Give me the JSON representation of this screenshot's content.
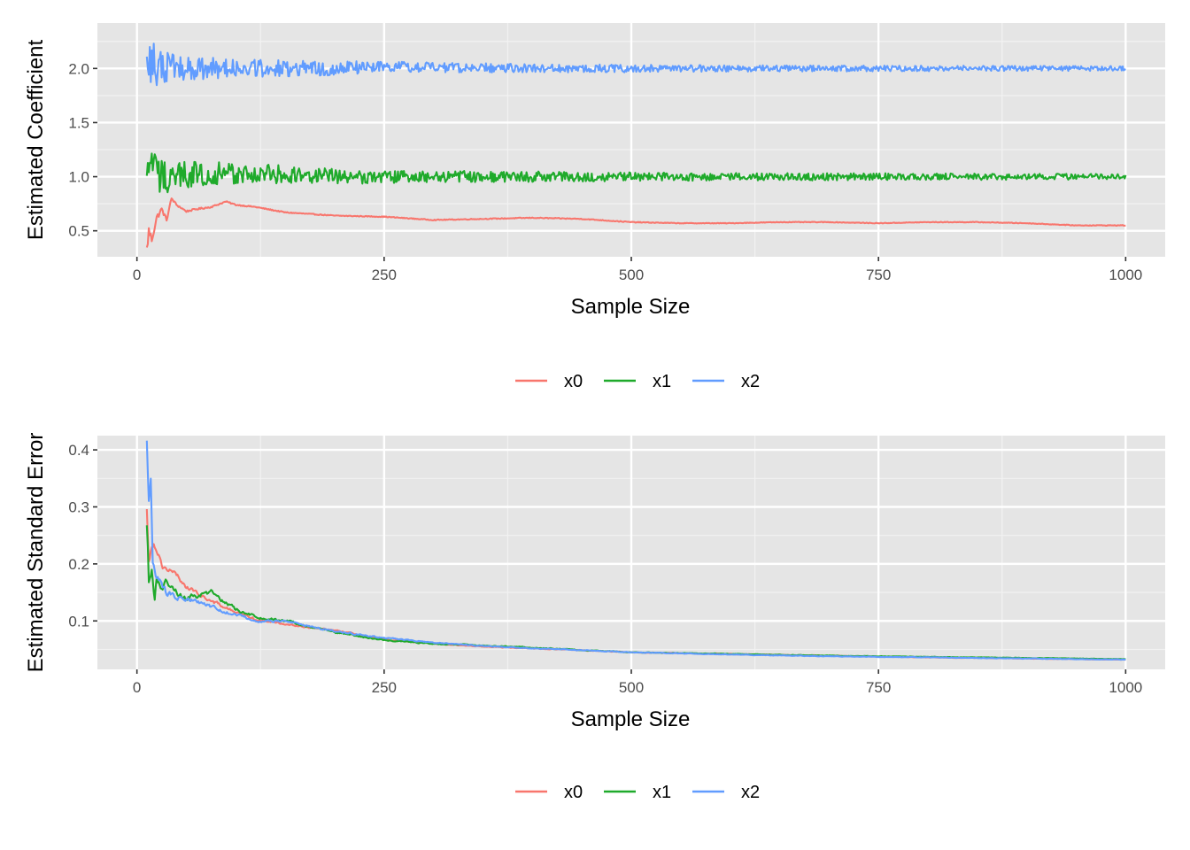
{
  "colors": {
    "panel_background": "#e5e5e5",
    "grid_major": "#ffffff",
    "grid_minor": "#f2f2f2",
    "tick_text": "#4d4d4d",
    "x0": "#F8766D",
    "x1": "#1FAA2B",
    "x2": "#619CFF"
  },
  "chart_data": [
    {
      "type": "line",
      "title": "",
      "xlabel": "Sample Size",
      "ylabel": "Estimated Coefficient",
      "xlim": [
        -40,
        1040
      ],
      "ylim": [
        0.26,
        2.42
      ],
      "x_ticks": [
        0,
        250,
        500,
        750,
        1000
      ],
      "x_tick_labels": [
        "0",
        "250",
        "500",
        "750",
        "1000"
      ],
      "y_ticks": [
        0.5,
        1.0,
        1.5,
        2.0
      ],
      "y_tick_labels": [
        "0.5",
        "1.0",
        "1.5",
        "2.0"
      ],
      "grid": true,
      "legend_position": "bottom",
      "legend": [
        "x0",
        "x1",
        "x2"
      ],
      "x_range": [
        10,
        1000
      ],
      "series": [
        {
          "name": "x0",
          "x": [
            10,
            12,
            15,
            20,
            25,
            30,
            35,
            40,
            50,
            60,
            75,
            90,
            100,
            120,
            150,
            200,
            250,
            300,
            350,
            400,
            450,
            500,
            550,
            600,
            650,
            700,
            750,
            800,
            850,
            900,
            950,
            1000
          ],
          "y": [
            0.32,
            0.5,
            0.42,
            0.62,
            0.7,
            0.6,
            0.8,
            0.74,
            0.68,
            0.7,
            0.72,
            0.77,
            0.74,
            0.72,
            0.67,
            0.64,
            0.63,
            0.6,
            0.61,
            0.62,
            0.61,
            0.58,
            0.57,
            0.57,
            0.58,
            0.58,
            0.57,
            0.58,
            0.58,
            0.57,
            0.55,
            0.55
          ],
          "noise": [
            0.06,
            0.05,
            0.04,
            0.03,
            0.02,
            0.015,
            0.012,
            0.01,
            0.008,
            0.008,
            0.007,
            0.006,
            0.006,
            0.005,
            0.005,
            0.004,
            0.004,
            0.004,
            0.004,
            0.004,
            0.004,
            0.004,
            0.003,
            0.003,
            0.003,
            0.003,
            0.003,
            0.003,
            0.003,
            0.003,
            0.003,
            0.003
          ]
        },
        {
          "name": "x1",
          "x": [
            10,
            15,
            20,
            30,
            50,
            75,
            100,
            150,
            200,
            250,
            300,
            400,
            500,
            600,
            700,
            800,
            900,
            1000
          ],
          "y": [
            0.9,
            1.2,
            1.0,
            1.0,
            1.02,
            1.03,
            1.02,
            1.02,
            1.0,
            1.0,
            1.0,
            1.0,
            1.0,
            1.0,
            1.0,
            1.0,
            1.0,
            1.0
          ],
          "noise": [
            0.25,
            0.22,
            0.18,
            0.15,
            0.13,
            0.12,
            0.1,
            0.09,
            0.07,
            0.06,
            0.055,
            0.05,
            0.04,
            0.035,
            0.035,
            0.03,
            0.03,
            0.025
          ]
        },
        {
          "name": "x2",
          "x": [
            10,
            15,
            20,
            30,
            50,
            75,
            100,
            150,
            200,
            250,
            300,
            400,
            500,
            600,
            700,
            800,
            900,
            1000
          ],
          "y": [
            2.0,
            2.05,
            2.0,
            2.02,
            2.0,
            2.0,
            2.0,
            2.0,
            2.0,
            2.02,
            2.01,
            2.0,
            2.0,
            2.0,
            2.0,
            2.0,
            2.0,
            2.0
          ],
          "noise": [
            0.25,
            0.22,
            0.17,
            0.14,
            0.11,
            0.1,
            0.085,
            0.075,
            0.065,
            0.05,
            0.045,
            0.04,
            0.035,
            0.03,
            0.028,
            0.026,
            0.024,
            0.022
          ]
        }
      ]
    },
    {
      "type": "line",
      "title": "",
      "xlabel": "Sample Size",
      "ylabel": "Estimated Standard Error",
      "xlim": [
        -40,
        1040
      ],
      "ylim": [
        0.015,
        0.425
      ],
      "x_ticks": [
        0,
        250,
        500,
        750,
        1000
      ],
      "x_tick_labels": [
        "0",
        "250",
        "500",
        "750",
        "1000"
      ],
      "y_ticks": [
        0.1,
        0.2,
        0.3,
        0.4
      ],
      "y_tick_labels": [
        "0.1",
        "0.2",
        "0.3",
        "0.4"
      ],
      "grid": true,
      "legend_position": "bottom",
      "legend": [
        "x0",
        "x1",
        "x2"
      ],
      "x_range": [
        10,
        1000
      ],
      "series": [
        {
          "name": "x0",
          "x": [
            10,
            12,
            15,
            20,
            25,
            30,
            40,
            50,
            75,
            100,
            125,
            150,
            175,
            200,
            250,
            300,
            350,
            400,
            500,
            600,
            700,
            800,
            900,
            1000
          ],
          "y": [
            0.29,
            0.21,
            0.24,
            0.23,
            0.2,
            0.19,
            0.18,
            0.16,
            0.135,
            0.115,
            0.1,
            0.095,
            0.088,
            0.083,
            0.068,
            0.06,
            0.055,
            0.052,
            0.045,
            0.042,
            0.039,
            0.036,
            0.034,
            0.032
          ],
          "noise": [
            0.02,
            0.015,
            0.012,
            0.01,
            0.009,
            0.008,
            0.006,
            0.005,
            0.004,
            0.003,
            0.003,
            0.002,
            0.002,
            0.002,
            0.0015,
            0.001,
            0.001,
            0.001,
            0.0008,
            0.0006,
            0.0006,
            0.0005,
            0.0005,
            0.0005
          ]
        },
        {
          "name": "x1",
          "x": [
            10,
            12,
            15,
            18,
            20,
            25,
            30,
            40,
            50,
            75,
            100,
            125,
            150,
            175,
            200,
            250,
            300,
            350,
            400,
            500,
            600,
            700,
            800,
            900,
            1000
          ],
          "y": [
            0.26,
            0.17,
            0.2,
            0.14,
            0.18,
            0.16,
            0.17,
            0.15,
            0.14,
            0.15,
            0.12,
            0.105,
            0.1,
            0.09,
            0.08,
            0.066,
            0.06,
            0.057,
            0.053,
            0.045,
            0.042,
            0.039,
            0.037,
            0.035,
            0.033
          ],
          "noise": [
            0.025,
            0.02,
            0.015,
            0.012,
            0.012,
            0.01,
            0.009,
            0.007,
            0.006,
            0.005,
            0.004,
            0.003,
            0.003,
            0.002,
            0.002,
            0.0015,
            0.001,
            0.001,
            0.001,
            0.0008,
            0.0006,
            0.0006,
            0.0005,
            0.0005,
            0.0005
          ]
        },
        {
          "name": "x2",
          "x": [
            10,
            12,
            14,
            16,
            20,
            25,
            30,
            40,
            50,
            75,
            100,
            125,
            150,
            175,
            200,
            250,
            300,
            350,
            400,
            500,
            600,
            700,
            800,
            900,
            1000
          ],
          "y": [
            0.41,
            0.3,
            0.34,
            0.2,
            0.18,
            0.16,
            0.15,
            0.14,
            0.14,
            0.125,
            0.11,
            0.1,
            0.1,
            0.09,
            0.082,
            0.07,
            0.062,
            0.056,
            0.052,
            0.045,
            0.041,
            0.038,
            0.036,
            0.034,
            0.032
          ],
          "noise": [
            0.02,
            0.02,
            0.015,
            0.012,
            0.01,
            0.009,
            0.008,
            0.006,
            0.005,
            0.004,
            0.003,
            0.003,
            0.002,
            0.002,
            0.002,
            0.0015,
            0.001,
            0.001,
            0.001,
            0.0008,
            0.0006,
            0.0006,
            0.0005,
            0.0005,
            0.0005
          ]
        }
      ]
    }
  ]
}
